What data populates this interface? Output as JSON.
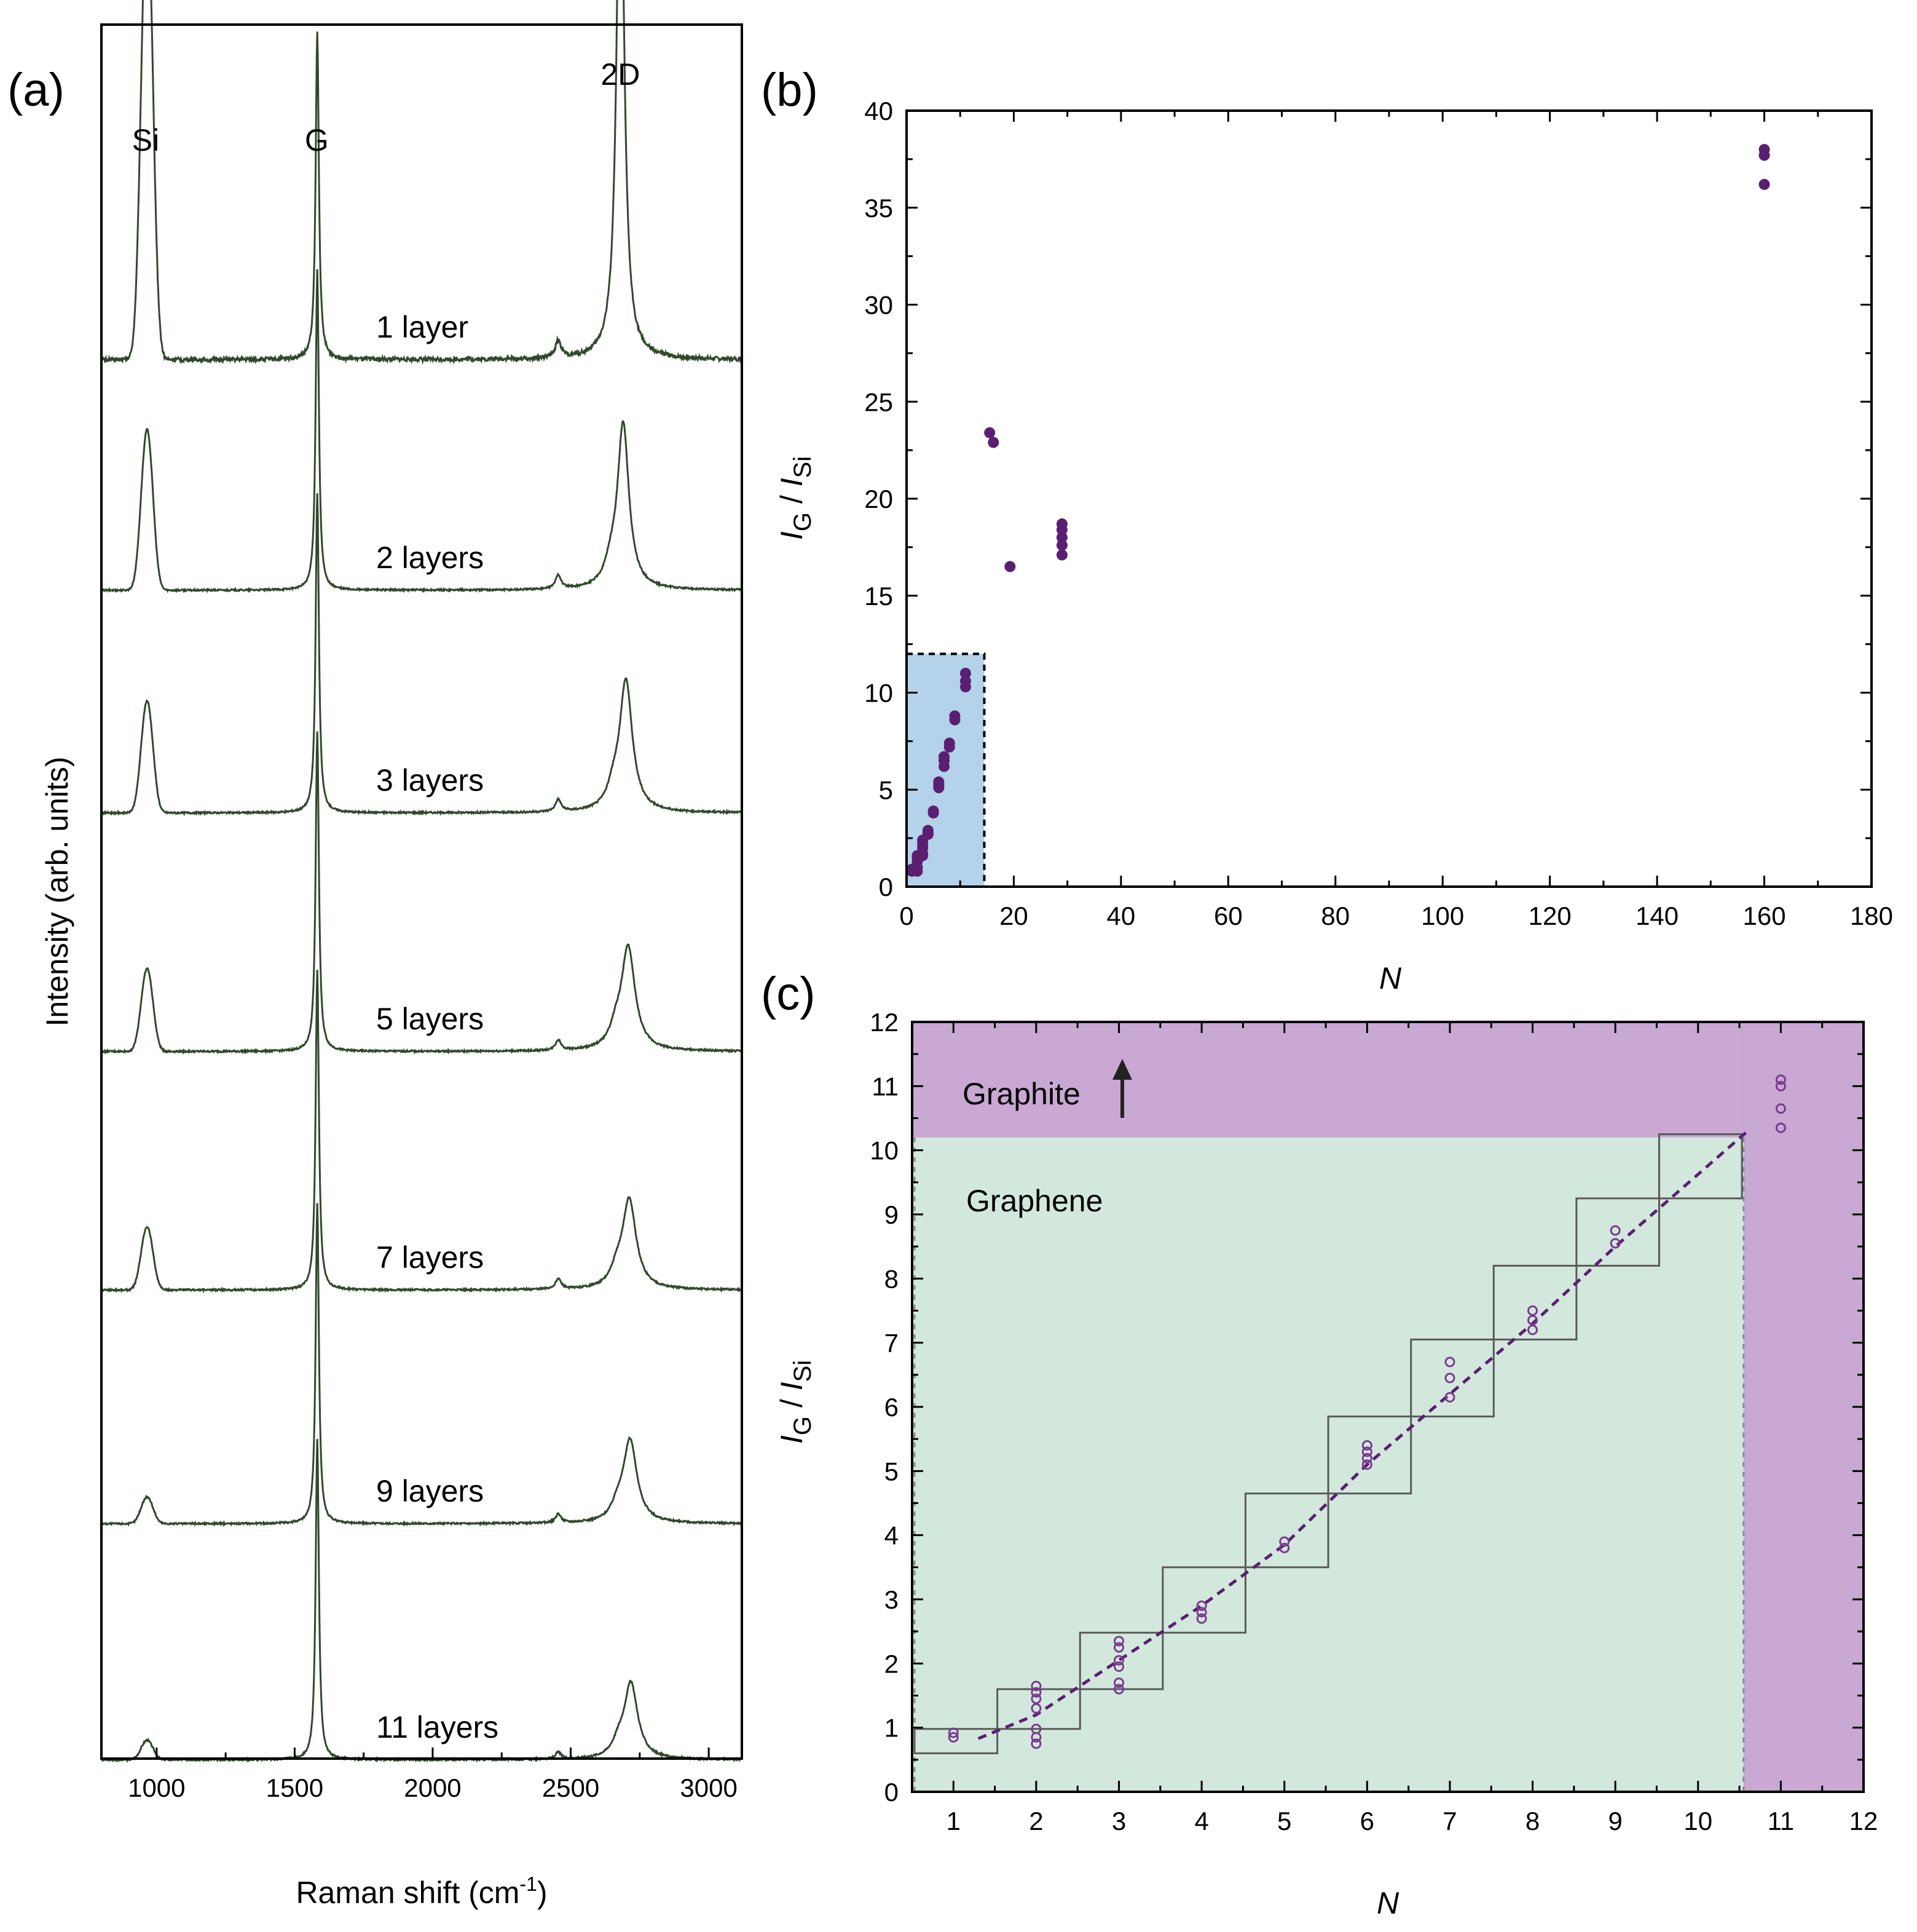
{
  "chart_data": [
    {
      "panel": "(a)",
      "type": "line",
      "xlabel": "Raman shift (cm-1)",
      "xlabel_main": "Raman shift (cm",
      "xlabel_sup": "-1",
      "xlabel_close": ")",
      "ylabel": "Intensity (arb. units)",
      "xlim": [
        800,
        3120
      ],
      "xticks": [
        1000,
        1500,
        2000,
        2500,
        3000
      ],
      "peaks": [
        {
          "label": "Si",
          "x": 960
        },
        {
          "label": "G",
          "x": 1580
        },
        {
          "label": "2D",
          "x": 2680
        }
      ],
      "series": [
        {
          "name": "1 layer",
          "si": 0.95,
          "g": 0.95,
          "two_d": 1.62,
          "two_d_x": 2680,
          "two_d_width": 16,
          "d2": 0.05,
          "shoulder": 0
        },
        {
          "name": "2 layers",
          "si": 0.33,
          "g": 0.93,
          "two_d": 0.48,
          "two_d_x": 2690,
          "two_d_width": 25,
          "d2": 0.04,
          "shoulder": 0.1
        },
        {
          "name": "3 layers",
          "si": 0.23,
          "g": 0.93,
          "two_d": 0.38,
          "two_d_x": 2700,
          "two_d_width": 28,
          "d2": 0.035,
          "shoulder": 0.12
        },
        {
          "name": "5 layers",
          "si": 0.17,
          "g": 0.93,
          "two_d": 0.3,
          "two_d_x": 2708,
          "two_d_width": 30,
          "d2": 0.03,
          "shoulder": 0.14
        },
        {
          "name": "7 layers",
          "si": 0.13,
          "g": 0.93,
          "two_d": 0.26,
          "two_d_x": 2712,
          "two_d_width": 30,
          "d2": 0.03,
          "shoulder": 0.15
        },
        {
          "name": "9 layers",
          "si": 0.055,
          "g": 0.93,
          "two_d": 0.24,
          "two_d_x": 2715,
          "two_d_width": 30,
          "d2": 0.025,
          "shoulder": 0.15
        },
        {
          "name": "11 layers",
          "si": 0.04,
          "g": 0.93,
          "two_d": 0.22,
          "two_d_x": 2718,
          "two_d_width": 30,
          "d2": 0.02,
          "shoulder": 0.15
        }
      ]
    },
    {
      "panel": "(b)",
      "type": "scatter",
      "xlabel": "N",
      "ylabel": "I_G / I_Si",
      "ylabel_parts": {
        "i1": "I",
        "sub1": "G",
        "sep": " / ",
        "i2": "I",
        "sub2": "Si"
      },
      "xlim": [
        0,
        180
      ],
      "ylim": [
        0,
        40
      ],
      "xticks": [
        0,
        20,
        40,
        60,
        80,
        100,
        120,
        140,
        160,
        180
      ],
      "yticks": [
        0,
        5,
        10,
        15,
        20,
        25,
        30,
        35,
        40
      ],
      "highlight_region": {
        "x": [
          0,
          14.5
        ],
        "y": [
          0,
          12
        ],
        "color": "#b4d3ea"
      },
      "points": [
        [
          1,
          0.8
        ],
        [
          1,
          0.9
        ],
        [
          2,
          0.8
        ],
        [
          2,
          1.0
        ],
        [
          2,
          1.3
        ],
        [
          2,
          1.5
        ],
        [
          2,
          1.6
        ],
        [
          3,
          1.6
        ],
        [
          3,
          1.7
        ],
        [
          3,
          2.0
        ],
        [
          3,
          2.1
        ],
        [
          3,
          2.3
        ],
        [
          3,
          2.4
        ],
        [
          4,
          2.7
        ],
        [
          4,
          2.8
        ],
        [
          4,
          2.9
        ],
        [
          5,
          3.8
        ],
        [
          5,
          3.9
        ],
        [
          6,
          5.1
        ],
        [
          6,
          5.2
        ],
        [
          6,
          5.3
        ],
        [
          6,
          5.4
        ],
        [
          7,
          6.2
        ],
        [
          7,
          6.5
        ],
        [
          7,
          6.7
        ],
        [
          8,
          7.2
        ],
        [
          8,
          7.4
        ],
        [
          9,
          8.6
        ],
        [
          9,
          8.8
        ],
        [
          11,
          10.3
        ],
        [
          11,
          10.6
        ],
        [
          11,
          11.0
        ],
        [
          15.5,
          23.4
        ],
        [
          16.2,
          22.9
        ],
        [
          19.3,
          16.5
        ],
        [
          29,
          17.1
        ],
        [
          29,
          17.6
        ],
        [
          29,
          18.0
        ],
        [
          29,
          18.4
        ],
        [
          29,
          18.7
        ],
        [
          160,
          36.2
        ],
        [
          160,
          37.7
        ],
        [
          160,
          38.0
        ]
      ],
      "point_color": "#5b1f72"
    },
    {
      "panel": "(c)",
      "type": "scatter",
      "xlabel": "N",
      "ylabel": "I_G / I_Si",
      "ylabel_parts": {
        "i1": "I",
        "sub1": "G",
        "sep": " / ",
        "i2": "I",
        "sub2": "Si"
      },
      "xlim": [
        0.5,
        12
      ],
      "ylim": [
        0,
        12
      ],
      "xticks": [
        1,
        2,
        3,
        4,
        5,
        6,
        7,
        8,
        9,
        10,
        11,
        12
      ],
      "yticks": [
        0,
        1,
        2,
        3,
        4,
        5,
        6,
        7,
        8,
        9,
        10,
        11,
        12
      ],
      "regions": [
        {
          "label": "Graphene",
          "color": "#d3e8dc"
        },
        {
          "label": "Graphite",
          "color": "#c9a8d3"
        }
      ],
      "graphite_threshold_y": 10.2,
      "graphite_threshold_x": 10.55,
      "fit_curve": [
        [
          1.3,
          0.83
        ],
        [
          2,
          1.2
        ],
        [
          3,
          2.05
        ],
        [
          4,
          2.9
        ],
        [
          5,
          3.85
        ],
        [
          6,
          5.1
        ],
        [
          7,
          6.2
        ],
        [
          8,
          7.3
        ],
        [
          9,
          8.5
        ],
        [
          10.6,
          10.3
        ]
      ],
      "steps": [
        {
          "x": 1,
          "y_low": 0.6,
          "y_high": 0.98
        },
        {
          "x": 2,
          "y_low": 0.98,
          "y_high": 1.6
        },
        {
          "x": 3,
          "y_low": 1.6,
          "y_high": 2.48
        },
        {
          "x": 4,
          "y_low": 2.48,
          "y_high": 3.5
        },
        {
          "x": 5,
          "y_low": 3.5,
          "y_high": 4.65
        },
        {
          "x": 6,
          "y_low": 4.65,
          "y_high": 5.85
        },
        {
          "x": 7,
          "y_low": 5.85,
          "y_high": 7.05
        },
        {
          "x": 8,
          "y_low": 7.05,
          "y_high": 8.2
        },
        {
          "x": 9,
          "y_low": 8.2,
          "y_high": 9.25
        },
        {
          "x": 10,
          "y_low": 9.25,
          "y_high": 10.25
        }
      ],
      "points": [
        [
          1,
          0.85
        ],
        [
          1,
          0.92
        ],
        [
          2,
          0.75
        ],
        [
          2,
          0.85
        ],
        [
          2,
          0.98
        ],
        [
          2,
          1.3
        ],
        [
          2,
          1.45
        ],
        [
          2,
          1.55
        ],
        [
          2,
          1.65
        ],
        [
          3,
          1.6
        ],
        [
          3,
          1.7
        ],
        [
          3,
          1.95
        ],
        [
          3,
          2.05
        ],
        [
          3,
          2.25
        ],
        [
          3,
          2.35
        ],
        [
          4,
          2.7
        ],
        [
          4,
          2.8
        ],
        [
          4,
          2.9
        ],
        [
          5,
          3.8
        ],
        [
          5,
          3.9
        ],
        [
          6,
          5.1
        ],
        [
          6,
          5.2
        ],
        [
          6,
          5.3
        ],
        [
          6,
          5.4
        ],
        [
          7,
          6.15
        ],
        [
          7,
          6.45
        ],
        [
          7,
          6.7
        ],
        [
          8,
          7.2
        ],
        [
          8,
          7.35
        ],
        [
          8,
          7.5
        ],
        [
          9,
          8.55
        ],
        [
          9,
          8.75
        ],
        [
          11,
          10.35
        ],
        [
          11,
          10.65
        ],
        [
          11,
          11.0
        ],
        [
          11,
          11.1
        ]
      ],
      "point_color": "#7a3a8f"
    }
  ]
}
